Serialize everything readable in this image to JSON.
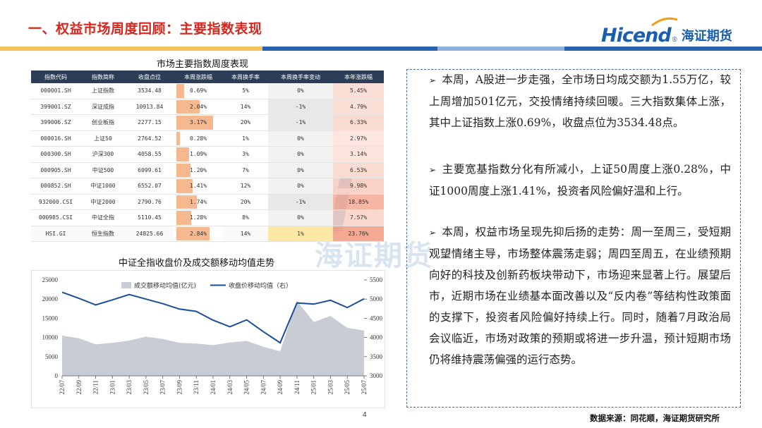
{
  "header": {
    "title": "一、权益市场周度回顾：主要指数表现",
    "logo_en": "Hicend",
    "logo_reg": "®",
    "logo_cn": "海证期货"
  },
  "colors": {
    "title_red": "#d9251c",
    "brand_blue": "#1a5fae",
    "table_header": "#2c3e57",
    "bar_orange": "#f5b88f",
    "bar_yellow": "#fde9a6",
    "bar_pink": "#f8d3c6",
    "area_gray": "#c8ccd4",
    "line_blue": "#1a4e9a"
  },
  "watermark": {
    "big": "Hi",
    "cn": "海证期货"
  },
  "table": {
    "title": "市场主要指数周度表现",
    "columns": [
      "指数代码",
      "指数简称",
      "收盘点位",
      "本周涨跌幅",
      "本周换手率",
      "本周换手率变动",
      "本年涨跌幅"
    ],
    "rows": [
      {
        "code": "000001.SH",
        "name": "上证指数",
        "close": "3534.48",
        "week_chg": "0.69%",
        "week_chg_num": 0.69,
        "turnover": "5%",
        "turnover_chg": "0%",
        "year_chg": "5.45%",
        "year_chg_num": 5.45
      },
      {
        "code": "399001.SZ",
        "name": "深证成指",
        "close": "10913.84",
        "week_chg": "2.04%",
        "week_chg_num": 2.04,
        "turnover": "14%",
        "turnover_chg": "-1%",
        "year_chg": "4.79%",
        "year_chg_num": 4.79
      },
      {
        "code": "399006.SZ",
        "name": "创业板指",
        "close": "2277.15",
        "week_chg": "3.17%",
        "week_chg_num": 3.17,
        "turnover": "20%",
        "turnover_chg": "-1%",
        "year_chg": "6.33%",
        "year_chg_num": 6.33
      },
      {
        "code": "000016.SH",
        "name": "上证50",
        "close": "2764.52",
        "week_chg": "0.28%",
        "week_chg_num": 0.28,
        "turnover": "1%",
        "turnover_chg": "0%",
        "year_chg": "2.97%",
        "year_chg_num": 2.97
      },
      {
        "code": "000300.SH",
        "name": "沪深300",
        "close": "4058.55",
        "week_chg": "1.09%",
        "week_chg_num": 1.09,
        "turnover": "3%",
        "turnover_chg": "0%",
        "year_chg": "3.14%",
        "year_chg_num": 3.14
      },
      {
        "code": "000905.SH",
        "name": "中证500",
        "close": "6099.61",
        "week_chg": "1.20%",
        "week_chg_num": 1.2,
        "turnover": "7%",
        "turnover_chg": "0%",
        "year_chg": "6.53%",
        "year_chg_num": 6.53
      },
      {
        "code": "000852.SH",
        "name": "中证1000",
        "close": "6552.07",
        "week_chg": "1.41%",
        "week_chg_num": 1.41,
        "turnover": "12%",
        "turnover_chg": "0%",
        "year_chg": "9.98%",
        "year_chg_num": 9.98
      },
      {
        "code": "932000.CSI",
        "name": "中证2000",
        "close": "2790.76",
        "week_chg": "1.74%",
        "week_chg_num": 1.74,
        "turnover": "20%",
        "turnover_chg": "-1%",
        "year_chg": "18.85%",
        "year_chg_num": 18.85
      },
      {
        "code": "000985.CSI",
        "name": "中证全指",
        "close": "5110.45",
        "week_chg": "1.28%",
        "week_chg_num": 1.28,
        "turnover": "8%",
        "turnover_chg": "0%",
        "year_chg": "7.57%",
        "year_chg_num": 7.57
      },
      {
        "code": "HSI.GI",
        "name": "恒生指数",
        "close": "24825.66",
        "week_chg": "2.84%",
        "week_chg_num": 2.84,
        "turnover": "14%",
        "turnover_chg": "1%",
        "year_chg": "23.76%",
        "year_chg_num": 23.76
      }
    ]
  },
  "chart_title": "中证全指收盘价及成交额移动均值走势",
  "chart_data": {
    "type": "area",
    "legend": {
      "series_a": "成交额移动均值(亿元)",
      "series_b": "收盘价移动均值（右）",
      "placement": "top"
    },
    "x": [
      "22/07",
      "22/09",
      "22/11",
      "23/01",
      "23/03",
      "23/05",
      "23/07",
      "23/09",
      "23/11",
      "24/01",
      "24/03",
      "24/05",
      "24/07",
      "24/09",
      "24/11",
      "25/01",
      "25/03",
      "25/05",
      "25/07"
    ],
    "left_axis": {
      "min": 0,
      "max": 25000,
      "ticks": [
        0,
        5000,
        10000,
        15000,
        20000,
        25000
      ]
    },
    "right_axis": {
      "min": 3000,
      "max": 5500,
      "ticks": [
        3000,
        3500,
        4000,
        4500,
        5000,
        5500
      ]
    },
    "series": [
      {
        "name": "成交额移动均值(亿元)",
        "axis": "left",
        "values": [
          10500,
          9800,
          8200,
          8600,
          9200,
          10200,
          9600,
          8600,
          8400,
          8000,
          8700,
          9100,
          7600,
          6400,
          19500,
          14000,
          15600,
          12500,
          11800
        ]
      },
      {
        "name": "收盘价移动均值（右）",
        "axis": "right",
        "values": [
          5180,
          5020,
          4850,
          4980,
          5120,
          5000,
          4880,
          4740,
          4680,
          4450,
          4280,
          4460,
          4150,
          3860,
          4900,
          4870,
          4970,
          4780,
          5010
        ]
      }
    ],
    "grid": false
  },
  "bullets": [
    "本周，A股进一步走强，全市场日均成交额为1.55万亿，较上周增加501亿元，交投情绪持续回暖。三大指数集体上涨，其中上证指数上涨0.69%，收盘点位为3534.48点。",
    "主要宽基指数分化有所减小，上证50周度上涨0.28%，中证1000周度上涨1.41%，投资者风险偏好温和上行。",
    "本周，权益市场呈现先抑后扬的走势：周一至周三，受短期观望情绪主导，市场整体震荡走弱；周四至周五，在业绩预期向好的科技及创新药板块带动下，市场迎来显著上行。展望后市，近期市场在业绩基本面改善以及“反内卷”等结构性政策面的支撑下，投资者风险偏好持续上行。同时，随着7月政治局会议临近，市场对政策的预期或将进一步升温，预计短期市场仍将维持震荡偏强的运行态势。"
  ],
  "bullet_marker": "➢",
  "footer": {
    "page": "4",
    "source": "数据来源：同花顺，海证期货研究所"
  }
}
